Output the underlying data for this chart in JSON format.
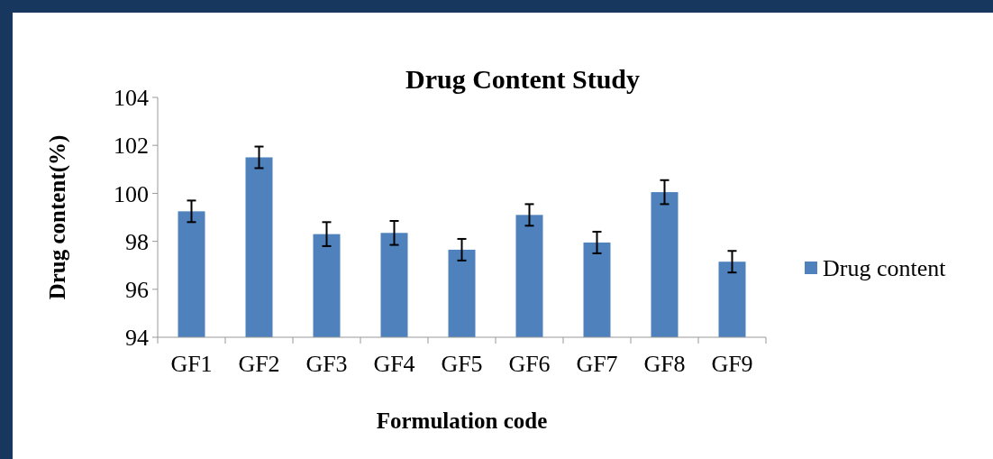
{
  "chart_data": {
    "type": "bar",
    "title": "Drug Content Study",
    "xlabel": "Formulation code",
    "ylabel": "Drug content(%)",
    "categories": [
      "GF1",
      "GF2",
      "GF3",
      "GF4",
      "GF5",
      "GF6",
      "GF7",
      "GF8",
      "GF9"
    ],
    "series": [
      {
        "name": "Drug content",
        "color": "#4f81bd",
        "values": [
          99.25,
          101.5,
          98.3,
          98.35,
          97.65,
          99.1,
          97.95,
          100.05,
          97.15
        ],
        "errors": [
          0.45,
          0.45,
          0.5,
          0.5,
          0.45,
          0.45,
          0.45,
          0.5,
          0.45
        ]
      }
    ],
    "ylim": [
      94,
      104
    ],
    "yticks": [
      94,
      96,
      98,
      100,
      102,
      104
    ],
    "grid": false,
    "legend": "right"
  }
}
